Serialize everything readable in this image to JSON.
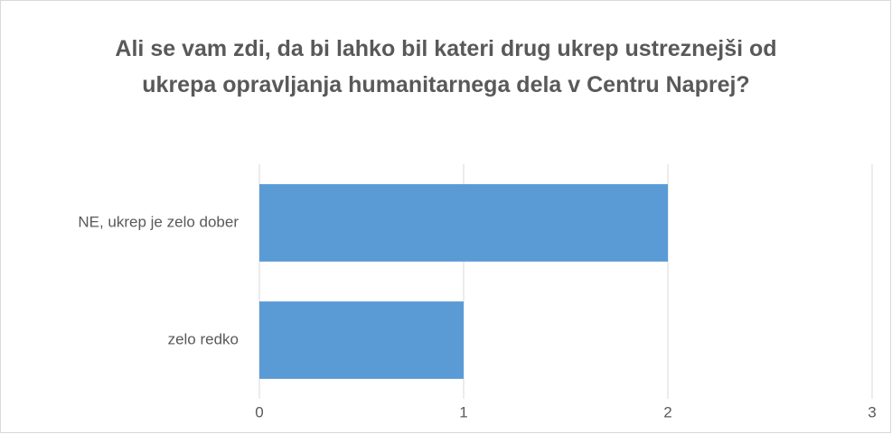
{
  "chart_data": {
    "type": "bar",
    "orientation": "horizontal",
    "title": "Ali se vam zdi, da bi lahko bil kateri drug ukrep ustreznejši od ukrepa opravljanja humanitarnega dela v Centru Naprej?",
    "categories": [
      "NE, ukrep je zelo dober",
      "zelo redko"
    ],
    "values": [
      2,
      1
    ],
    "color": "#5b9bd5",
    "xlim": [
      0,
      3
    ],
    "xticks": [
      0,
      1,
      2,
      3
    ],
    "grid": true
  }
}
